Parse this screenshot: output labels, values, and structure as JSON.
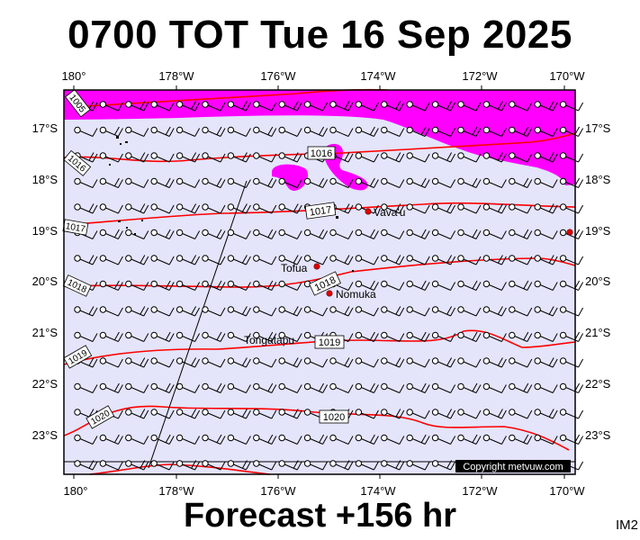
{
  "header": {
    "title": "0700 TOT Tue 16 Sep 2025"
  },
  "footer": {
    "forecast": "Forecast +156 hr",
    "product_code": "IM2"
  },
  "map": {
    "lon_labels": [
      "180°",
      "178°W",
      "176°W",
      "174°W",
      "172°W",
      "170°W"
    ],
    "lat_labels": [
      "17°S",
      "18°S",
      "19°S",
      "20°S",
      "21°S",
      "22°S",
      "23°S"
    ],
    "copyright": "Copyright metvuw.com",
    "colors": {
      "ocean": "#e4e4fb",
      "rain": "#ff00ff",
      "isobar": "#ff0000",
      "frame": "#000000"
    },
    "places": [
      {
        "name": "Vava'u",
        "lon": -174.0,
        "lat": -18.65
      },
      {
        "name": "Tofua",
        "lon": -175.05,
        "lat": -19.72
      },
      {
        "name": "Nomuka",
        "lon": -174.8,
        "lat": -20.25
      },
      {
        "name": "Tongatapu",
        "lon": -175.2,
        "lat": -21.13
      }
    ],
    "isobars": [
      {
        "label": "1005",
        "lat_deg": -16.5
      },
      {
        "label": "1016",
        "lat_deg": -17.5
      },
      {
        "label": "1017",
        "lat_deg": -18.6
      },
      {
        "label": "1018",
        "lat_deg": -20.0
      },
      {
        "label": "1019",
        "lat_deg": -21.1
      },
      {
        "label": "1020",
        "lat_deg": -22.45
      }
    ],
    "isobar_side_labels": [
      "1016",
      "1017",
      "1018",
      "1019",
      "1020"
    ],
    "wind": {
      "direction": "E",
      "barb_icon": "wind-barb-icon"
    }
  }
}
